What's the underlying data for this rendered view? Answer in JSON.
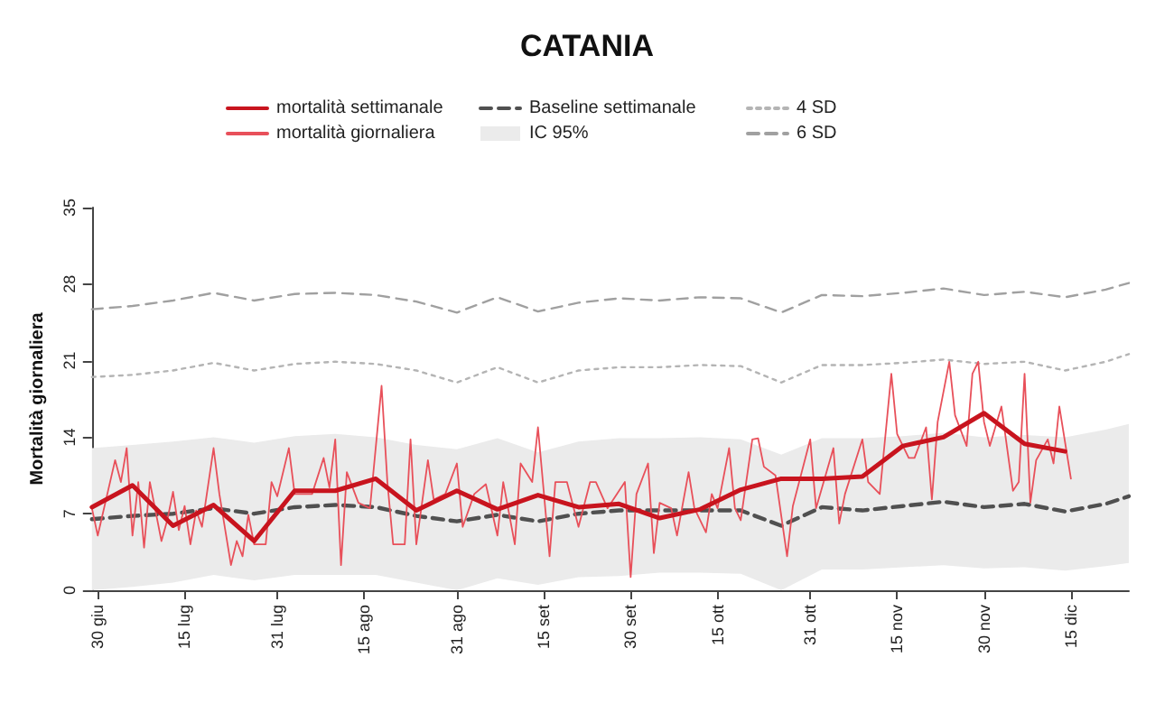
{
  "chart_data": {
    "type": "line",
    "title": "CATANIA",
    "ylabel": "Mortalità giornaliera",
    "xlim": [
      "--06-29",
      "--12-25"
    ],
    "ylim": [
      0,
      35
    ],
    "yticks": [
      0,
      7,
      14,
      21,
      28,
      35
    ],
    "xticks": [
      {
        "value": "--06-30",
        "label": "30 giu"
      },
      {
        "value": "--07-15",
        "label": "15 lug"
      },
      {
        "value": "--07-31",
        "label": "31 lug"
      },
      {
        "value": "--08-15",
        "label": "15 ago"
      },
      {
        "value": "--08-31",
        "label": "31 ago"
      },
      {
        "value": "--09-15",
        "label": "15 set"
      },
      {
        "value": "--09-30",
        "label": "30 set"
      },
      {
        "value": "--10-15",
        "label": "15 ott"
      },
      {
        "value": "--10-31",
        "label": "31 ott"
      },
      {
        "value": "--11-15",
        "label": "15 nov"
      },
      {
        "value": "--11-30",
        "label": "30 nov"
      },
      {
        "value": "--12-15",
        "label": "15 dic"
      }
    ],
    "grid": false,
    "legend": "top",
    "marker": "none",
    "series": [
      {
        "name": "mortalità settimanale",
        "color": "#c8141e",
        "line_style": "solid",
        "x": [
          "--06-29",
          "--07-06",
          "--07-13",
          "--07-20",
          "--07-27",
          "--08-03",
          "--08-10",
          "--08-17",
          "--08-24",
          "--08-31",
          "--09-07",
          "--09-14",
          "--09-21",
          "--09-28",
          "--10-05",
          "--10-12",
          "--10-19",
          "--10-26",
          "--11-02",
          "--11-09",
          "--11-16",
          "--11-23",
          "--11-30",
          "--12-07",
          "--12-14"
        ],
        "values": [
          7.6,
          9.6,
          5.9,
          7.8,
          4.5,
          9.1,
          9.1,
          10.2,
          7.3,
          9.1,
          7.4,
          8.7,
          7.6,
          7.9,
          6.6,
          7.4,
          9.2,
          10.2,
          10.2,
          10.4,
          13.2,
          14.0,
          16.2,
          13.4,
          12.7
        ]
      },
      {
        "name": "mortalità giornaliera",
        "color": "#e8505a",
        "line_style": "solid",
        "x": [
          "--06-29",
          "--06-30",
          "--07-03",
          "--07-04",
          "--07-05",
          "--07-06",
          "--07-07",
          "--07-08",
          "--07-09",
          "--07-11",
          "--07-12",
          "--07-13",
          "--07-14",
          "--07-15",
          "--07-16",
          "--07-17",
          "--07-18",
          "--07-20",
          "--07-21",
          "--07-23",
          "--07-24",
          "--07-25",
          "--07-26",
          "--07-27",
          "--07-29",
          "--07-30",
          "--07-31",
          "--08-02",
          "--08-03",
          "--08-06",
          "--08-08",
          "--08-09",
          "--08-10",
          "--08-11",
          "--08-12",
          "--08-14",
          "--08-16",
          "--08-18",
          "--08-19",
          "--08-20",
          "--08-22",
          "--08-23",
          "--08-24",
          "--08-26",
          "--08-27",
          "--08-29",
          "--08-31",
          "--09-01",
          "--09-03",
          "--09-05",
          "--09-07",
          "--09-08",
          "--09-10",
          "--09-11",
          "--09-13",
          "--09-14",
          "--09-16",
          "--09-17",
          "--09-19",
          "--09-21",
          "--09-23",
          "--09-24",
          "--09-26",
          "--09-29",
          "--09-30",
          "--10-01",
          "--10-03",
          "--10-04",
          "--10-05",
          "--10-07",
          "--10-08",
          "--10-10",
          "--10-11",
          "--10-13",
          "--10-14",
          "--10-15",
          "--10-17",
          "--10-18",
          "--10-19",
          "--10-21",
          "--10-22",
          "--10-23",
          "--10-25",
          "--10-27",
          "--10-28",
          "--10-31",
          "--11-01",
          "--11-04",
          "--11-05",
          "--11-06",
          "--11-09",
          "--11-10",
          "--11-12",
          "--11-14",
          "--11-15",
          "--11-17",
          "--11-18",
          "--11-20",
          "--11-21",
          "--11-22",
          "--11-24",
          "--11-25",
          "--11-27",
          "--11-28",
          "--11-29",
          "--11-30",
          "--12-01",
          "--12-03",
          "--12-05",
          "--12-06",
          "--12-07",
          "--12-08",
          "--12-09",
          "--12-11",
          "--12-12",
          "--12-13",
          "--12-15"
        ],
        "values": [
          7.5,
          5.0,
          11.9,
          9.9,
          13.0,
          5.0,
          9.9,
          3.9,
          9.9,
          4.5,
          6.4,
          9.0,
          5.5,
          7.7,
          4.2,
          7.3,
          5.8,
          13.0,
          8.8,
          2.3,
          4.5,
          3.1,
          6.9,
          4.2,
          4.2,
          9.9,
          8.6,
          13.0,
          8.8,
          8.8,
          12.1,
          9.4,
          13.8,
          2.3,
          10.8,
          8.0,
          7.5,
          18.7,
          9.9,
          4.2,
          4.2,
          13.8,
          4.2,
          11.9,
          8.3,
          8.8,
          11.6,
          5.8,
          8.8,
          9.7,
          5.0,
          9.9,
          4.2,
          11.6,
          9.9,
          14.9,
          3.1,
          9.9,
          9.9,
          5.8,
          9.9,
          9.9,
          7.5,
          9.9,
          1.2,
          8.8,
          11.6,
          3.4,
          8.0,
          7.5,
          5.0,
          10.8,
          7.5,
          5.3,
          8.8,
          7.5,
          13.0,
          7.5,
          6.4,
          13.8,
          13.9,
          11.3,
          10.5,
          3.1,
          7.7,
          13.8,
          7.5,
          13.0,
          6.1,
          8.8,
          13.8,
          9.9,
          8.8,
          19.8,
          14.3,
          12.1,
          12.1,
          14.9,
          8.3,
          15.4,
          20.9,
          16.0,
          13.2,
          19.8,
          20.9,
          15.4,
          13.2,
          16.8,
          9.1,
          9.9,
          19.8,
          8.0,
          11.9,
          13.8,
          11.6,
          16.8,
          10.2
        ]
      },
      {
        "name": "Baseline settimanale",
        "color": "#505050",
        "line_style": "dashed",
        "x": [
          "--06-29",
          "--07-06",
          "--07-13",
          "--07-20",
          "--07-27",
          "--08-03",
          "--08-10",
          "--08-17",
          "--08-24",
          "--08-31",
          "--09-07",
          "--09-14",
          "--09-21",
          "--09-28",
          "--10-05",
          "--10-12",
          "--10-19",
          "--10-26",
          "--11-02",
          "--11-09",
          "--11-16",
          "--11-23",
          "--11-30",
          "--12-07",
          "--12-14",
          "--12-21",
          "--12-25"
        ],
        "values": [
          6.5,
          6.8,
          7.0,
          7.5,
          7.0,
          7.6,
          7.8,
          7.6,
          6.8,
          6.3,
          6.9,
          6.3,
          7.0,
          7.3,
          7.3,
          7.3,
          7.3,
          5.9,
          7.6,
          7.3,
          7.7,
          8.1,
          7.6,
          7.9,
          7.2,
          7.9,
          8.6
        ]
      },
      {
        "name": "IC 95%",
        "type": "area",
        "color": "#ebebeb",
        "values": [
          null,
          null,
          null,
          null,
          null,
          null,
          null,
          null,
          null,
          null,
          null,
          null,
          null,
          null,
          null,
          null,
          null,
          null,
          null,
          null,
          null,
          null,
          null,
          null,
          null,
          null,
          null
        ],
        "x": [
          "--06-29",
          "--07-06",
          "--07-13",
          "--07-20",
          "--07-27",
          "--08-03",
          "--08-10",
          "--08-17",
          "--08-24",
          "--08-31",
          "--09-07",
          "--09-14",
          "--09-21",
          "--09-28",
          "--10-05",
          "--10-12",
          "--10-19",
          "--10-26",
          "--11-02",
          "--11-09",
          "--11-16",
          "--11-23",
          "--11-30",
          "--12-07",
          "--12-14",
          "--12-21",
          "--12-25"
        ],
        "lower": [
          0,
          0.3,
          0.7,
          1.4,
          0.9,
          1.4,
          1.4,
          1.4,
          0.7,
          0,
          1.1,
          0.5,
          1.2,
          1.3,
          1.6,
          1.6,
          1.5,
          0,
          1.9,
          1.9,
          2.1,
          2.3,
          2.0,
          2.1,
          1.8,
          2.2,
          2.5
        ],
        "upper": [
          13.0,
          13.3,
          13.6,
          14.0,
          13.5,
          14.1,
          14.3,
          14.0,
          13.3,
          12.9,
          13.9,
          12.6,
          13.6,
          13.9,
          13.9,
          14.0,
          13.8,
          12.4,
          13.9,
          13.9,
          14.1,
          14.4,
          14.0,
          14.2,
          14.0,
          14.7,
          15.2
        ]
      },
      {
        "name": "4 SD",
        "color": "#b4b4b4",
        "line_style": "dotted",
        "x": [
          "--06-29",
          "--07-06",
          "--07-13",
          "--07-20",
          "--07-27",
          "--08-03",
          "--08-10",
          "--08-17",
          "--08-24",
          "--08-31",
          "--09-07",
          "--09-14",
          "--09-21",
          "--09-28",
          "--10-05",
          "--10-12",
          "--10-19",
          "--10-26",
          "--11-02",
          "--11-09",
          "--11-16",
          "--11-23",
          "--11-30",
          "--12-07",
          "--12-14",
          "--12-21",
          "--12-25"
        ],
        "values": [
          19.5,
          19.7,
          20.1,
          20.8,
          20.1,
          20.7,
          20.9,
          20.7,
          20.1,
          19.0,
          20.4,
          19.0,
          20.1,
          20.4,
          20.4,
          20.6,
          20.5,
          19.0,
          20.6,
          20.6,
          20.8,
          21.1,
          20.7,
          20.9,
          20.1,
          20.9,
          21.6
        ]
      },
      {
        "name": "6 SD",
        "color": "#a0a0a0",
        "line_style": "dashed",
        "x": [
          "--06-29",
          "--07-06",
          "--07-13",
          "--07-20",
          "--07-27",
          "--08-03",
          "--08-10",
          "--08-17",
          "--08-24",
          "--08-31",
          "--09-07",
          "--09-14",
          "--09-21",
          "--09-28",
          "--10-05",
          "--10-12",
          "--10-19",
          "--10-26",
          "--11-02",
          "--11-09",
          "--11-16",
          "--11-23",
          "--11-30",
          "--12-07",
          "--12-14",
          "--12-21",
          "--12-25"
        ],
        "values": [
          25.7,
          26.0,
          26.5,
          27.2,
          26.5,
          27.1,
          27.2,
          27.0,
          26.4,
          25.4,
          26.8,
          25.5,
          26.3,
          26.7,
          26.5,
          26.8,
          26.7,
          25.4,
          27.0,
          26.9,
          27.2,
          27.6,
          27.0,
          27.3,
          26.8,
          27.5,
          28.1
        ]
      }
    ]
  }
}
